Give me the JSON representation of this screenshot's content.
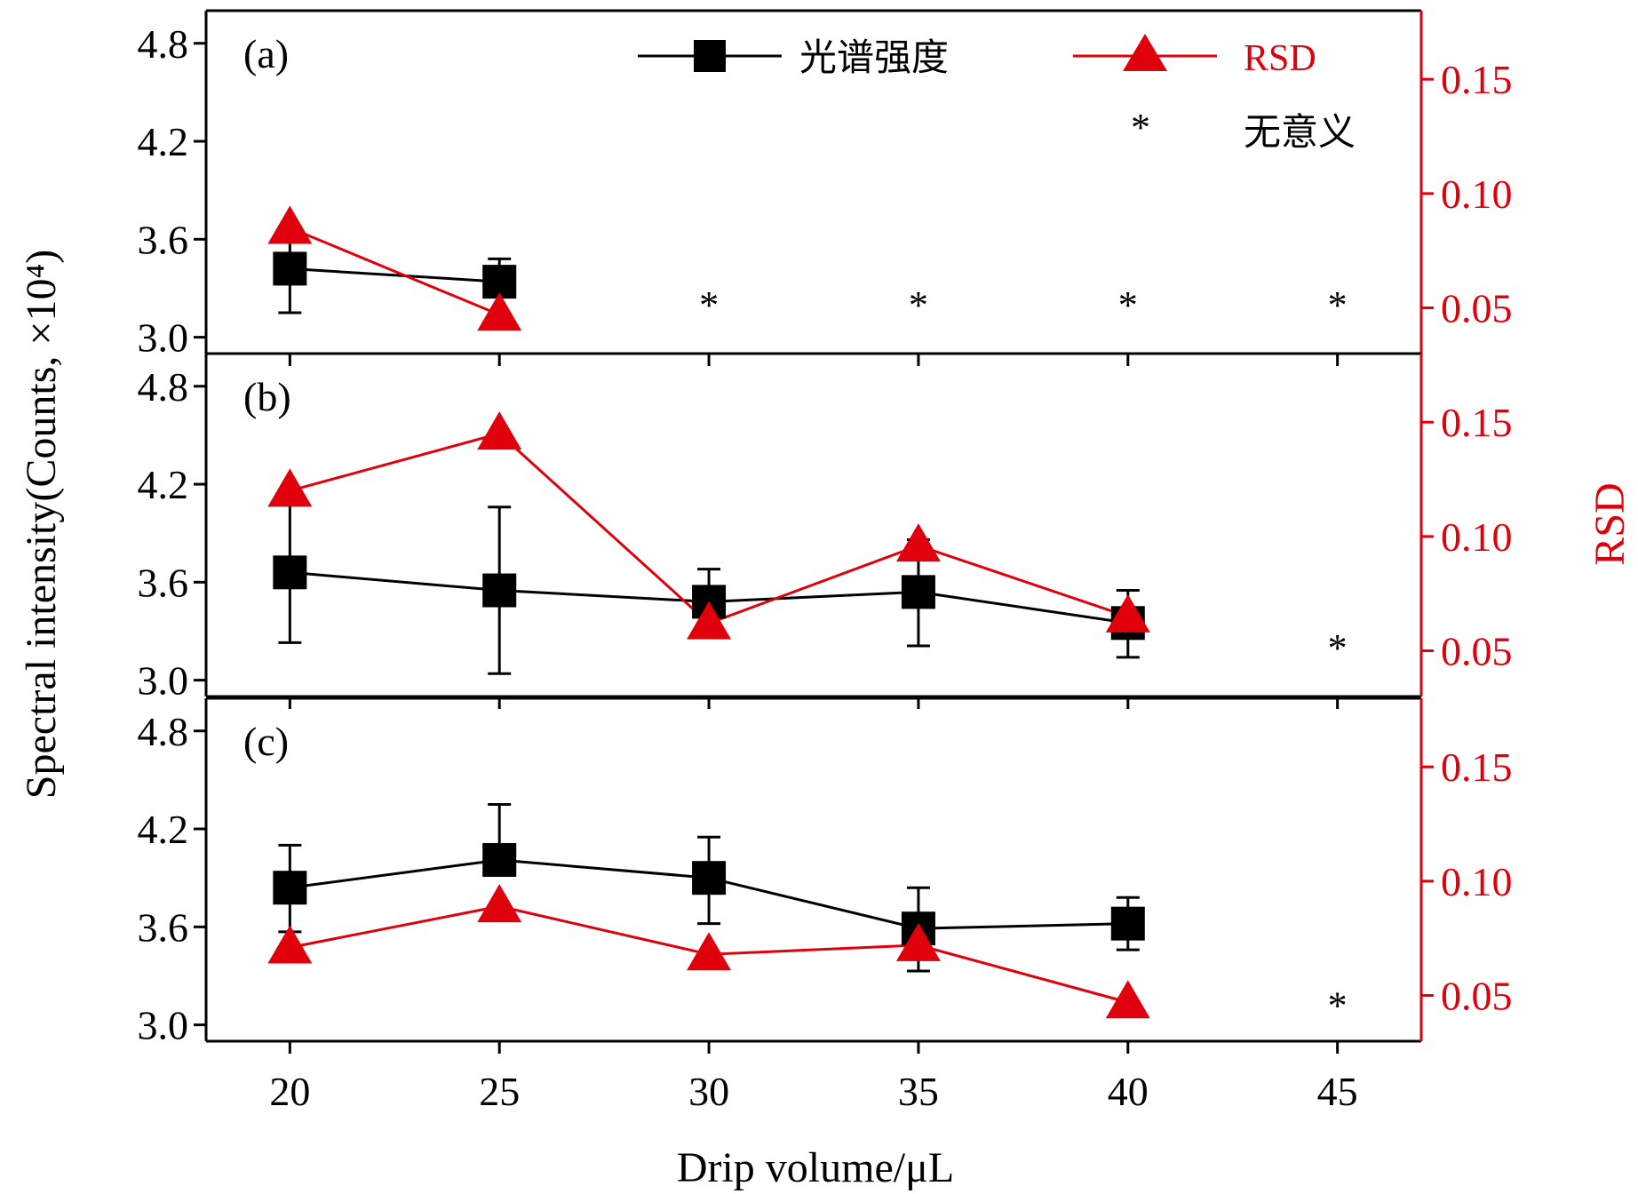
{
  "chart_data": {
    "type": "line",
    "xlabel": "Drip volume/μL",
    "ylabel_left": "Spectral intensity(Counts, ×10⁴)",
    "ylabel_right": "RSD",
    "x_ticks": [
      "20",
      "25",
      "30",
      "35",
      "40",
      "45"
    ],
    "xlim": [
      18,
      47
    ],
    "ylim_left": [
      2.9,
      5.0
    ],
    "ylim_right": [
      0.03,
      0.18
    ],
    "y_ticks_left": [
      "3.0",
      "3.6",
      "4.2",
      "4.8"
    ],
    "y_ticks_right": [
      "0.05",
      "0.10",
      "0.15"
    ],
    "colors": {
      "intensity": "#000000",
      "rsd": "#e0000b"
    },
    "legend": {
      "placement": "top",
      "intensity_label": "光谱强度",
      "rsd_label": "RSD",
      "no_meaning_symbol": "*",
      "no_meaning_label": "无意义"
    },
    "panels": [
      {
        "label": "(a)",
        "x": [
          20,
          25
        ],
        "intensity": [
          3.42,
          3.34
        ],
        "err_plus": [
          0.22,
          0.14
        ],
        "err_minus": [
          0.27,
          0.0
        ],
        "rsd": [
          0.085,
          0.047
        ],
        "stars_x": [
          30,
          35,
          40,
          45
        ],
        "stars_y": [
          3.27,
          3.27,
          3.27,
          3.27
        ]
      },
      {
        "label": "(b)",
        "x": [
          20,
          25,
          30,
          35,
          40
        ],
        "intensity": [
          3.66,
          3.55,
          3.48,
          3.54,
          3.35
        ],
        "err_plus": [
          0.47,
          0.51,
          0.2,
          0.32,
          0.2
        ],
        "err_minus": [
          0.43,
          0.51,
          0.0,
          0.33,
          0.21
        ],
        "rsd": [
          0.12,
          0.145,
          0.062,
          0.096,
          0.065
        ],
        "stars_x": [
          45
        ],
        "stars_y": [
          3.27
        ]
      },
      {
        "label": "(c)",
        "x": [
          20,
          25,
          30,
          35,
          40
        ],
        "intensity": [
          3.84,
          4.01,
          3.9,
          3.59,
          3.62
        ],
        "err_plus": [
          0.26,
          0.34,
          0.25,
          0.25,
          0.16
        ],
        "err_minus": [
          0.27,
          0.0,
          0.28,
          0.26,
          0.16
        ],
        "rsd": [
          0.071,
          0.089,
          0.068,
          0.072,
          0.047
        ],
        "stars_x": [
          45
        ],
        "stars_y": [
          3.19
        ]
      }
    ]
  }
}
